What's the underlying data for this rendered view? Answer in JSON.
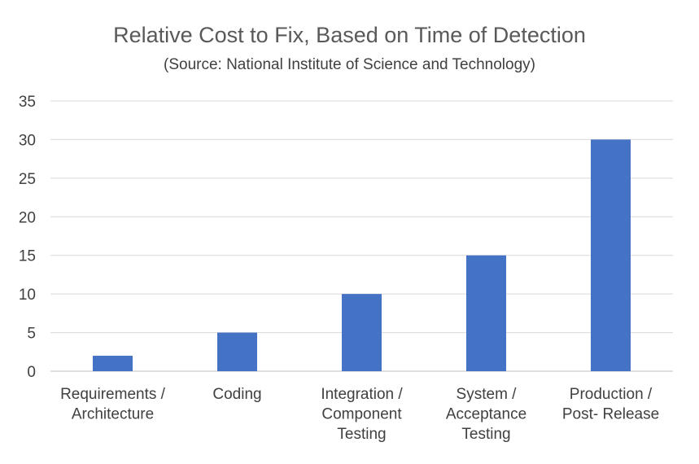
{
  "chart_data": {
    "type": "bar",
    "title": "Relative Cost to Fix, Based on Time of Detection",
    "subtitle": "(Source: National Institute of Science and Technology)",
    "categories": [
      [
        "Requirements /",
        "Architecture"
      ],
      [
        "Coding"
      ],
      [
        "Integration /",
        "Component",
        "Testing"
      ],
      [
        "System /",
        "Acceptance",
        "Testing"
      ],
      [
        "Production /",
        "Post- Release"
      ]
    ],
    "values": [
      2,
      5,
      10,
      15,
      30
    ],
    "ylim": [
      0,
      35
    ],
    "yticks": [
      0,
      5,
      10,
      15,
      20,
      25,
      30,
      35
    ],
    "grid": true,
    "bar_color": "#4472C4",
    "grid_color": "#d9d9d9"
  }
}
